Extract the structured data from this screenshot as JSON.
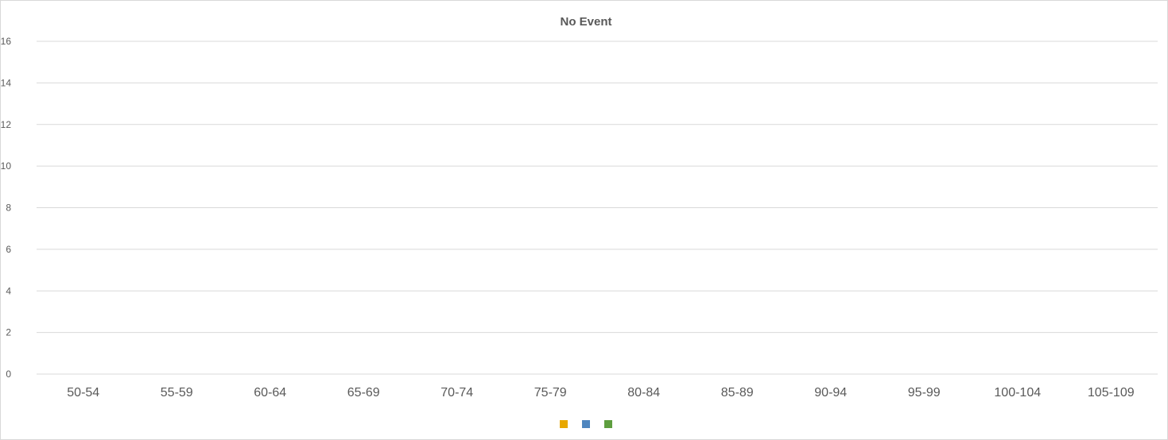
{
  "chart_data": {
    "type": "bar",
    "title": "No Event",
    "xlabel": "",
    "ylabel": "",
    "categories": [
      "50-54",
      "55-59",
      "60-64",
      "65-69",
      "70-74",
      "75-79",
      "80-84",
      "85-89",
      "90-94",
      "95-99",
      "100-104",
      "105-109"
    ],
    "yticks": [
      "0",
      "2",
      "4",
      "6",
      "8",
      "10",
      "12",
      "14",
      "16"
    ],
    "ylim": [
      0,
      16
    ],
    "grid": true,
    "legend_position": "bottom",
    "series": [
      {
        "color": "#E8A800",
        "values": [
          0,
          0,
          0,
          0,
          0,
          0,
          0,
          0,
          0,
          0,
          0,
          0
        ]
      },
      {
        "color": "#4F86BF",
        "values": [
          0,
          0,
          0,
          0,
          0,
          0,
          0,
          0,
          0,
          0,
          0,
          0
        ]
      },
      {
        "color": "#5E9E3F",
        "values": [
          0,
          0,
          0,
          0,
          0,
          0,
          0,
          0,
          0,
          0,
          0,
          0
        ]
      }
    ],
    "colors": {
      "gridline": "#d9d9d9",
      "text": "#595959"
    }
  }
}
